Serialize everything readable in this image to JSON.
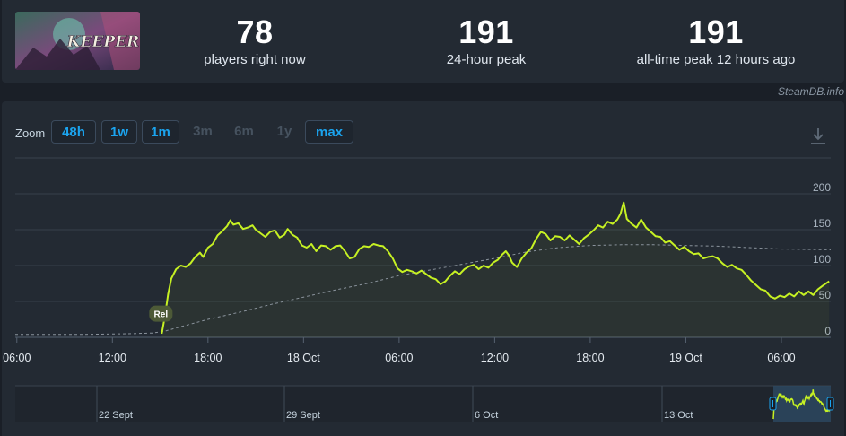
{
  "header": {
    "logo_text": "KEEPER",
    "stats": [
      {
        "value": "78",
        "label": "players right now"
      },
      {
        "value": "191",
        "label": "24-hour peak"
      },
      {
        "value": "191",
        "label": "all-time peak 12 hours ago"
      }
    ]
  },
  "attribution": "SteamDB.info",
  "zoom": {
    "label": "Zoom",
    "buttons": [
      {
        "label": "48h",
        "active": true
      },
      {
        "label": "1w",
        "active": true
      },
      {
        "label": "1m",
        "active": true
      },
      {
        "label": "3m",
        "active": false
      },
      {
        "label": "6m",
        "active": false
      },
      {
        "label": "1y",
        "active": false
      },
      {
        "label": "max",
        "active": true
      }
    ]
  },
  "icons": {
    "download": "download-icon"
  },
  "colors": {
    "line": "#c6f123",
    "trend": "#8a939c",
    "background": "#1a1f27",
    "panel": "#232a33",
    "accent": "#1ba4ef"
  },
  "chart_data": {
    "type": "line",
    "x_unit": "hours since Oct 17 00:00",
    "x_ticks": [
      {
        "x": 6,
        "label": "06:00"
      },
      {
        "x": 12,
        "label": "12:00"
      },
      {
        "x": 18,
        "label": "18:00"
      },
      {
        "x": 24,
        "label": "18 Oct"
      },
      {
        "x": 30,
        "label": "06:00"
      },
      {
        "x": 36,
        "label": "12:00"
      },
      {
        "x": 42,
        "label": "18:00"
      },
      {
        "x": 48,
        "label": "19 Oct"
      },
      {
        "x": 54,
        "label": "06:00"
      }
    ],
    "xlim": [
      5.9,
      57.1
    ],
    "ylim": [
      0,
      200
    ],
    "y_ticks": [
      0,
      50,
      100,
      150,
      200
    ],
    "grid": true,
    "annotation": {
      "x": 15.1,
      "y": 33,
      "label": "Rel"
    },
    "series": [
      {
        "style": "solid",
        "points": [
          [
            15.1,
            5
          ],
          [
            15.3,
            30
          ],
          [
            15.5,
            60
          ],
          [
            15.7,
            82
          ],
          [
            16.0,
            95
          ],
          [
            16.3,
            100
          ],
          [
            16.6,
            98
          ],
          [
            16.9,
            103
          ],
          [
            17.2,
            112
          ],
          [
            17.5,
            118
          ],
          [
            17.7,
            112
          ],
          [
            18.0,
            125
          ],
          [
            18.3,
            130
          ],
          [
            18.6,
            142
          ],
          [
            18.9,
            148
          ],
          [
            19.2,
            155
          ],
          [
            19.4,
            163
          ],
          [
            19.6,
            157
          ],
          [
            19.9,
            159
          ],
          [
            20.2,
            151
          ],
          [
            20.5,
            153
          ],
          [
            20.8,
            156
          ],
          [
            21.0,
            150
          ],
          [
            21.3,
            145
          ],
          [
            21.6,
            140
          ],
          [
            21.9,
            147
          ],
          [
            22.2,
            149
          ],
          [
            22.5,
            139
          ],
          [
            22.8,
            143
          ],
          [
            23.0,
            151
          ],
          [
            23.3,
            143
          ],
          [
            23.6,
            139
          ],
          [
            23.9,
            128
          ],
          [
            24.2,
            125
          ],
          [
            24.5,
            130
          ],
          [
            24.8,
            120
          ],
          [
            25.1,
            128
          ],
          [
            25.4,
            127
          ],
          [
            25.7,
            122
          ],
          [
            26.0,
            127
          ],
          [
            26.3,
            128
          ],
          [
            26.6,
            120
          ],
          [
            26.9,
            110
          ],
          [
            27.2,
            112
          ],
          [
            27.5,
            123
          ],
          [
            27.8,
            127
          ],
          [
            28.1,
            126
          ],
          [
            28.4,
            130
          ],
          [
            28.7,
            128
          ],
          [
            29.0,
            127
          ],
          [
            29.3,
            120
          ],
          [
            29.6,
            110
          ],
          [
            29.9,
            96
          ],
          [
            30.2,
            91
          ],
          [
            30.5,
            94
          ],
          [
            30.8,
            92
          ],
          [
            31.1,
            89
          ],
          [
            31.4,
            93
          ],
          [
            31.7,
            88
          ],
          [
            32.0,
            83
          ],
          [
            32.3,
            81
          ],
          [
            32.6,
            74
          ],
          [
            32.9,
            78
          ],
          [
            33.2,
            86
          ],
          [
            33.5,
            92
          ],
          [
            33.8,
            88
          ],
          [
            34.1,
            95
          ],
          [
            34.4,
            99
          ],
          [
            34.7,
            101
          ],
          [
            35.0,
            95
          ],
          [
            35.3,
            100
          ],
          [
            35.6,
            97
          ],
          [
            35.9,
            104
          ],
          [
            36.2,
            108
          ],
          [
            36.5,
            116
          ],
          [
            36.7,
            120
          ],
          [
            36.9,
            114
          ],
          [
            37.1,
            104
          ],
          [
            37.4,
            98
          ],
          [
            37.7,
            110
          ],
          [
            38.0,
            118
          ],
          [
            38.3,
            124
          ],
          [
            38.6,
            137
          ],
          [
            38.9,
            147
          ],
          [
            39.2,
            144
          ],
          [
            39.5,
            135
          ],
          [
            39.8,
            141
          ],
          [
            40.1,
            140
          ],
          [
            40.4,
            135
          ],
          [
            40.7,
            142
          ],
          [
            41.0,
            136
          ],
          [
            41.3,
            130
          ],
          [
            41.6,
            138
          ],
          [
            41.9,
            143
          ],
          [
            42.2,
            149
          ],
          [
            42.5,
            156
          ],
          [
            42.8,
            153
          ],
          [
            43.1,
            161
          ],
          [
            43.4,
            158
          ],
          [
            43.7,
            164
          ],
          [
            43.9,
            172
          ],
          [
            44.1,
            188
          ],
          [
            44.3,
            165
          ],
          [
            44.6,
            158
          ],
          [
            44.9,
            153
          ],
          [
            45.2,
            164
          ],
          [
            45.5,
            153
          ],
          [
            45.8,
            147
          ],
          [
            46.1,
            141
          ],
          [
            46.4,
            140
          ],
          [
            46.7,
            132
          ],
          [
            47.0,
            134
          ],
          [
            47.3,
            128
          ],
          [
            47.6,
            122
          ],
          [
            47.9,
            126
          ],
          [
            48.2,
            120
          ],
          [
            48.5,
            116
          ],
          [
            48.8,
            117
          ],
          [
            49.1,
            110
          ],
          [
            49.4,
            112
          ],
          [
            49.7,
            113
          ],
          [
            50.0,
            110
          ],
          [
            50.3,
            103
          ],
          [
            50.6,
            98
          ],
          [
            50.9,
            101
          ],
          [
            51.2,
            96
          ],
          [
            51.5,
            94
          ],
          [
            51.8,
            87
          ],
          [
            52.1,
            79
          ],
          [
            52.4,
            73
          ],
          [
            52.7,
            67
          ],
          [
            53.0,
            65
          ],
          [
            53.3,
            57
          ],
          [
            53.6,
            54
          ],
          [
            53.9,
            58
          ],
          [
            54.2,
            56
          ],
          [
            54.5,
            61
          ],
          [
            54.8,
            57
          ],
          [
            55.1,
            64
          ],
          [
            55.4,
            59
          ],
          [
            55.7,
            64
          ],
          [
            56.0,
            59
          ],
          [
            56.3,
            67
          ],
          [
            56.6,
            72
          ],
          [
            57.0,
            78
          ]
        ]
      },
      {
        "style": "dashed",
        "points": [
          [
            5.9,
            4
          ],
          [
            10,
            4
          ],
          [
            13,
            5
          ],
          [
            14.5,
            6
          ],
          [
            15.2,
            8
          ],
          [
            16,
            13
          ],
          [
            17,
            19
          ],
          [
            18,
            25
          ],
          [
            20,
            35
          ],
          [
            22,
            46
          ],
          [
            24,
            56
          ],
          [
            26,
            66
          ],
          [
            28,
            75
          ],
          [
            30,
            86
          ],
          [
            32,
            94
          ],
          [
            34,
            102
          ],
          [
            36,
            110
          ],
          [
            38,
            119
          ],
          [
            40,
            125
          ],
          [
            42,
            128
          ],
          [
            44,
            129
          ],
          [
            46,
            129
          ],
          [
            48,
            128
          ],
          [
            50,
            127
          ],
          [
            52,
            125
          ],
          [
            54,
            123
          ],
          [
            57.1,
            122
          ]
        ]
      }
    ]
  },
  "navigator": {
    "labels": [
      {
        "label": "22 Sept"
      },
      {
        "label": "29 Sept"
      },
      {
        "label": "6 Oct"
      },
      {
        "label": "13 Oct"
      }
    ]
  }
}
